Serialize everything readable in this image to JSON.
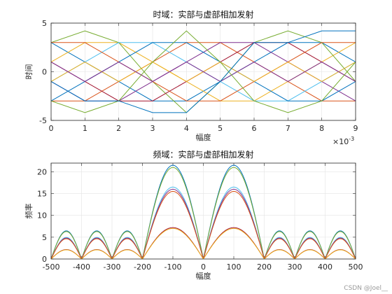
{
  "chart_data": [
    {
      "type": "line",
      "title": "时域：实部与虚部相加发射",
      "xlabel": "幅度",
      "ylabel": "时间",
      "xlim": [
        0,
        9
      ],
      "ylim": [
        -5,
        5
      ],
      "x_exponent_label": "10",
      "x_exponent_power": "-3",
      "xticks": [
        "0",
        "1",
        "2",
        "3",
        "4",
        "5",
        "6",
        "7",
        "8",
        "9"
      ],
      "yticks": [
        "-5",
        "0",
        "5"
      ],
      "grid": true,
      "x": [
        0,
        1,
        2,
        3,
        4,
        5,
        6,
        7,
        8,
        9
      ],
      "series": [
        {
          "color": "#0072BD",
          "values": [
            3,
            1,
            -1,
            -3,
            -3,
            -1,
            1,
            3,
            3,
            1
          ]
        },
        {
          "color": "#D95319",
          "values": [
            -3,
            -3,
            -1,
            1,
            3,
            3,
            1,
            -1,
            -3,
            -3
          ]
        },
        {
          "color": "#EDB120",
          "values": [
            1,
            3,
            3,
            1,
            -1,
            -3,
            -3,
            -1,
            1,
            3
          ]
        },
        {
          "color": "#7E2F8E",
          "values": [
            -1,
            -3,
            -3,
            -1,
            1,
            3,
            3,
            1,
            -1,
            -3
          ]
        },
        {
          "color": "#77AC30",
          "values": [
            3,
            4.2,
            3,
            -1,
            -4.2,
            -1,
            3,
            4.2,
            3,
            -1
          ]
        },
        {
          "color": "#4DBEEE",
          "values": [
            -1,
            1,
            3,
            3,
            1,
            -1,
            -3,
            -3,
            -1,
            1
          ]
        },
        {
          "color": "#A2142F",
          "values": [
            1,
            -1,
            -3,
            -3,
            -1,
            1,
            3,
            3,
            1,
            -1
          ]
        },
        {
          "color": "#0072BD",
          "values": [
            -3,
            -1,
            1,
            3,
            3,
            1,
            -1,
            -3,
            -3,
            -1
          ]
        },
        {
          "color": "#D95319",
          "values": [
            3,
            3,
            1,
            -1,
            -3,
            -3,
            -1,
            1,
            3,
            3
          ]
        },
        {
          "color": "#EDB120",
          "values": [
            -1,
            1,
            -1,
            1,
            -1,
            1,
            -1,
            1,
            -1,
            1
          ]
        },
        {
          "color": "#7E2F8E",
          "values": [
            1,
            -1,
            1,
            -1,
            1,
            -1,
            1,
            -1,
            1,
            -1
          ]
        },
        {
          "color": "#77AC30",
          "values": [
            -3,
            -4.2,
            -3,
            1,
            4.2,
            1,
            -3,
            -4.2,
            -3,
            1
          ]
        },
        {
          "color": "#0072BD",
          "values": [
            -1,
            -3,
            -3,
            -4.2,
            -4.2,
            -1,
            3,
            3,
            4.2,
            4.2
          ]
        }
      ]
    },
    {
      "type": "line",
      "title": "频域：实部与虚部相加发射",
      "xlabel": "幅度",
      "ylabel": "频率",
      "xlim": [
        -500,
        500
      ],
      "ylim": [
        0,
        22
      ],
      "xticks": [
        "-500",
        "-400",
        "-300",
        "-200",
        "-100",
        "0",
        "100",
        "200",
        "300",
        "400",
        "500"
      ],
      "yticks": [
        "0",
        "5",
        "10",
        "15",
        "20"
      ],
      "grid": true,
      "x_range": [
        -500,
        500
      ],
      "main_lobe_half_width": 200,
      "sidelobe_width": 100,
      "series": [
        {
          "color": "#0072BD",
          "peak": 21.5
        },
        {
          "color": "#77AC30",
          "peak": 21.0
        },
        {
          "color": "#4DBEEE",
          "peak": 16.5
        },
        {
          "color": "#7E2F8E",
          "peak": 16.0
        },
        {
          "color": "#D95319",
          "peak": 15.5
        },
        {
          "color": "#A2142F",
          "peak": 7.2
        },
        {
          "color": "#EDB120",
          "peak": 7.0
        }
      ]
    }
  ],
  "watermark": "CSDN @Joel__"
}
